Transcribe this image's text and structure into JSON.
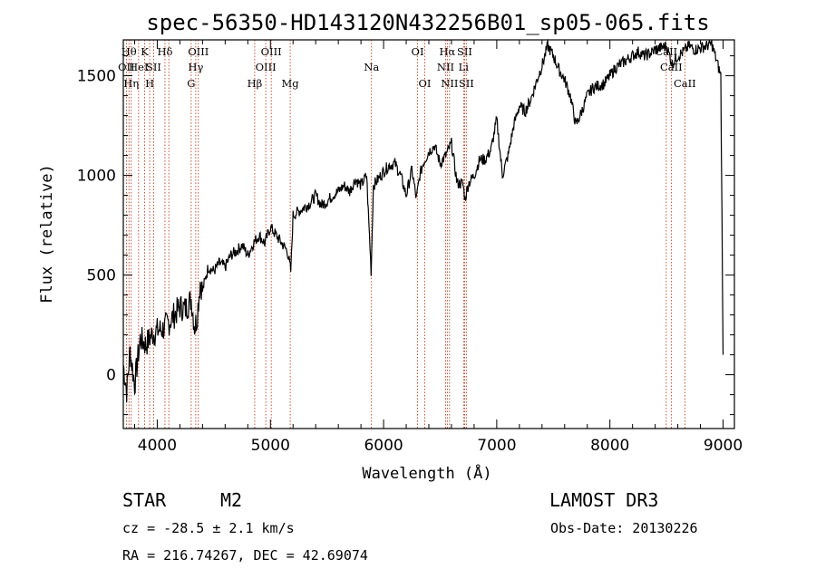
{
  "chart_data": {
    "type": "line",
    "title": "spec-56350-HD143120N432256B01_sp05-065.fits",
    "xlabel": "Wavelength (Å)",
    "ylabel": "Flux (relative)",
    "xlim": [
      3700,
      9100
    ],
    "ylim": [
      -270,
      1680
    ],
    "xticks": [
      4000,
      5000,
      6000,
      7000,
      8000,
      9000
    ],
    "yticks": [
      0,
      500,
      1000,
      1500
    ],
    "xtick_labels": [
      "4000",
      "5000",
      "6000",
      "7000",
      "8000",
      "9000"
    ],
    "ytick_labels": [
      "0",
      "500",
      "1000",
      "1500"
    ],
    "series": [
      {
        "name": "flux",
        "x": [
          3700,
          3730,
          3760,
          3800,
          3850,
          3900,
          3950,
          4000,
          4050,
          4100,
          4150,
          4200,
          4250,
          4300,
          4330,
          4350,
          4380,
          4400,
          4450,
          4500,
          4550,
          4600,
          4650,
          4700,
          4750,
          4800,
          4850,
          4900,
          4950,
          5000,
          5050,
          5100,
          5150,
          5180,
          5200,
          5250,
          5300,
          5350,
          5400,
          5450,
          5500,
          5550,
          5600,
          5650,
          5700,
          5750,
          5800,
          5850,
          5890,
          5910,
          5950,
          6000,
          6050,
          6100,
          6150,
          6200,
          6250,
          6290,
          6320,
          6350,
          6400,
          6450,
          6500,
          6550,
          6600,
          6650,
          6700,
          6720,
          6750,
          6800,
          6850,
          6900,
          6950,
          7000,
          7050,
          7100,
          7150,
          7200,
          7250,
          7300,
          7350,
          7400,
          7450,
          7500,
          7550,
          7600,
          7650,
          7700,
          7750,
          7800,
          7850,
          7900,
          7950,
          8000,
          8050,
          8100,
          8150,
          8200,
          8250,
          8300,
          8350,
          8400,
          8450,
          8500,
          8550,
          8600,
          8650,
          8700,
          8750,
          8800,
          8850,
          8900,
          8950,
          8980,
          9000
        ],
        "y": [
          50,
          -80,
          120,
          -50,
          180,
          150,
          200,
          220,
          230,
          260,
          300,
          340,
          330,
          380,
          240,
          280,
          470,
          420,
          540,
          520,
          560,
          540,
          600,
          620,
          650,
          600,
          660,
          700,
          660,
          740,
          700,
          660,
          620,
          520,
          800,
          820,
          840,
          860,
          900,
          850,
          870,
          900,
          920,
          950,
          920,
          980,
          950,
          1000,
          520,
          950,
          980,
          1020,
          1050,
          1060,
          1000,
          900,
          1030,
          880,
          1000,
          1060,
          1120,
          1150,
          1060,
          1100,
          1160,
          960,
          960,
          880,
          960,
          1000,
          1080,
          1080,
          1130,
          1280,
          1000,
          1100,
          1250,
          1350,
          1320,
          1380,
          1470,
          1550,
          1650,
          1600,
          1530,
          1480,
          1400,
          1250,
          1320,
          1400,
          1440,
          1450,
          1460,
          1500,
          1540,
          1560,
          1580,
          1600,
          1620,
          1600,
          1610,
          1630,
          1640,
          1650,
          1560,
          1600,
          1620,
          1650,
          1630,
          1640,
          1650,
          1660,
          1560,
          1500,
          100
        ]
      }
    ],
    "line_markers": [
      {
        "wl": 3727,
        "top": "OII",
        "row": 2
      },
      {
        "wl": 3750,
        "top": "Hθ",
        "row": 1
      },
      {
        "wl": 3770,
        "top": "Hη",
        "row": 3
      },
      {
        "wl": 3835,
        "top": "HeI",
        "row": 2
      },
      {
        "wl": 3889,
        "top": "K",
        "row": 1
      },
      {
        "wl": 3933,
        "top": "H",
        "row": 3
      },
      {
        "wl": 3968,
        "top": "SII",
        "row": 2
      },
      {
        "wl": 4068,
        "top": "Hδ",
        "row": 1
      },
      {
        "wl": 4102,
        "top": "",
        "row": 0
      },
      {
        "wl": 4300,
        "top": "G",
        "row": 3
      },
      {
        "wl": 4340,
        "top": "Hγ",
        "row": 2
      },
      {
        "wl": 4363,
        "top": "OIII",
        "row": 1
      },
      {
        "wl": 4861,
        "top": "Hβ",
        "row": 3
      },
      {
        "wl": 4959,
        "top": "OIII",
        "row": 2
      },
      {
        "wl": 5007,
        "top": "OIII",
        "row": 1
      },
      {
        "wl": 5175,
        "top": "Mg",
        "row": 3
      },
      {
        "wl": 5893,
        "top": "Na",
        "row": 2
      },
      {
        "wl": 6300,
        "top": "OI",
        "row": 1
      },
      {
        "wl": 6364,
        "top": "OI",
        "row": 3
      },
      {
        "wl": 6548,
        "top": "NII",
        "row": 2
      },
      {
        "wl": 6563,
        "top": "Hα",
        "row": 1
      },
      {
        "wl": 6583,
        "top": "NII",
        "row": 3
      },
      {
        "wl": 6707,
        "top": "Li",
        "row": 2
      },
      {
        "wl": 6716,
        "top": "SII",
        "row": 1
      },
      {
        "wl": 6731,
        "top": "SII",
        "row": 3
      },
      {
        "wl": 8498,
        "top": "CaII",
        "row": 1
      },
      {
        "wl": 8542,
        "top": "CaII",
        "row": 2
      },
      {
        "wl": 8662,
        "top": "CaII",
        "row": 3
      }
    ]
  },
  "info": {
    "class": "STAR",
    "subclass": "M2",
    "survey": "LAMOST DR3",
    "cz": "cz = -28.5 ± 2.1 km/s",
    "obs_date": "Obs-Date: 20130226",
    "coords": "RA = 216.74267, DEC =  42.69074"
  },
  "colors": {
    "line": "#000000",
    "marker": "#cc2200",
    "background": "#ffffff"
  }
}
